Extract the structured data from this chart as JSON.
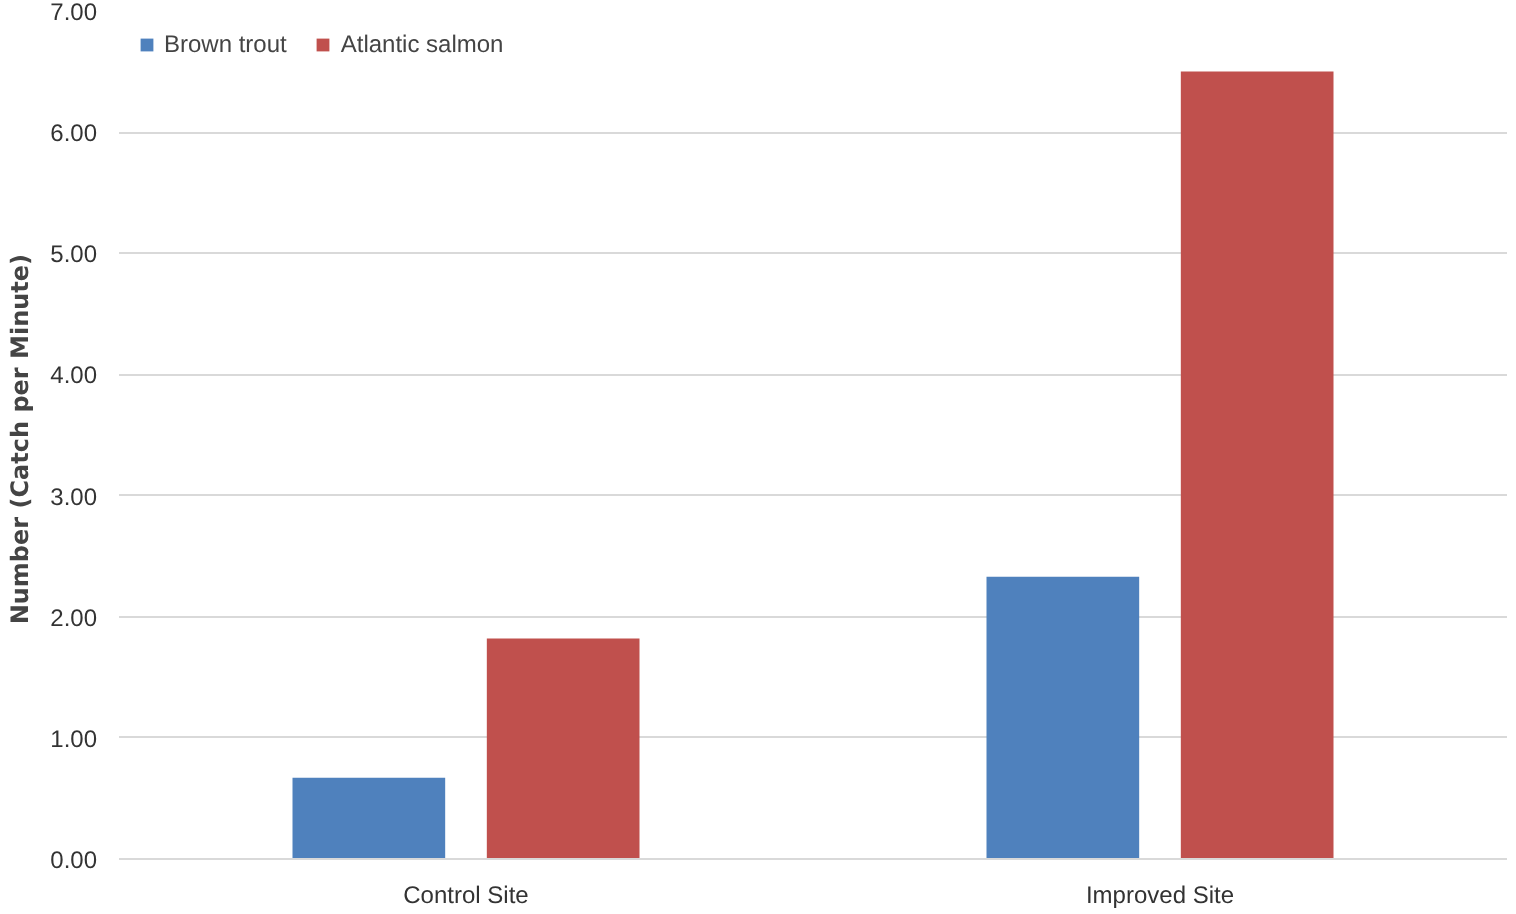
{
  "chart_data": {
    "type": "bar",
    "ylabel": "Number  (Catch per Minute)",
    "categories": [
      "Control Site",
      "Improved Site"
    ],
    "series": [
      {
        "name": "Brown trout",
        "color": "#4f81bd",
        "values": [
          0.67,
          2.33
        ]
      },
      {
        "name": "Atlantic salmon",
        "color": "#c0504d",
        "values": [
          1.82,
          6.5
        ]
      }
    ],
    "ylim": [
      0,
      7
    ],
    "yticks": [
      {
        "value": 0,
        "label": "0.00"
      },
      {
        "value": 1,
        "label": "1.00"
      },
      {
        "value": 2,
        "label": "2.00"
      },
      {
        "value": 3,
        "label": "3.00"
      },
      {
        "value": 4,
        "label": "4.00"
      },
      {
        "value": 5,
        "label": "5.00"
      },
      {
        "value": 6,
        "label": "6.00"
      },
      {
        "value": 7,
        "label": "7.00"
      }
    ],
    "grid": "y",
    "legend": "top left"
  }
}
